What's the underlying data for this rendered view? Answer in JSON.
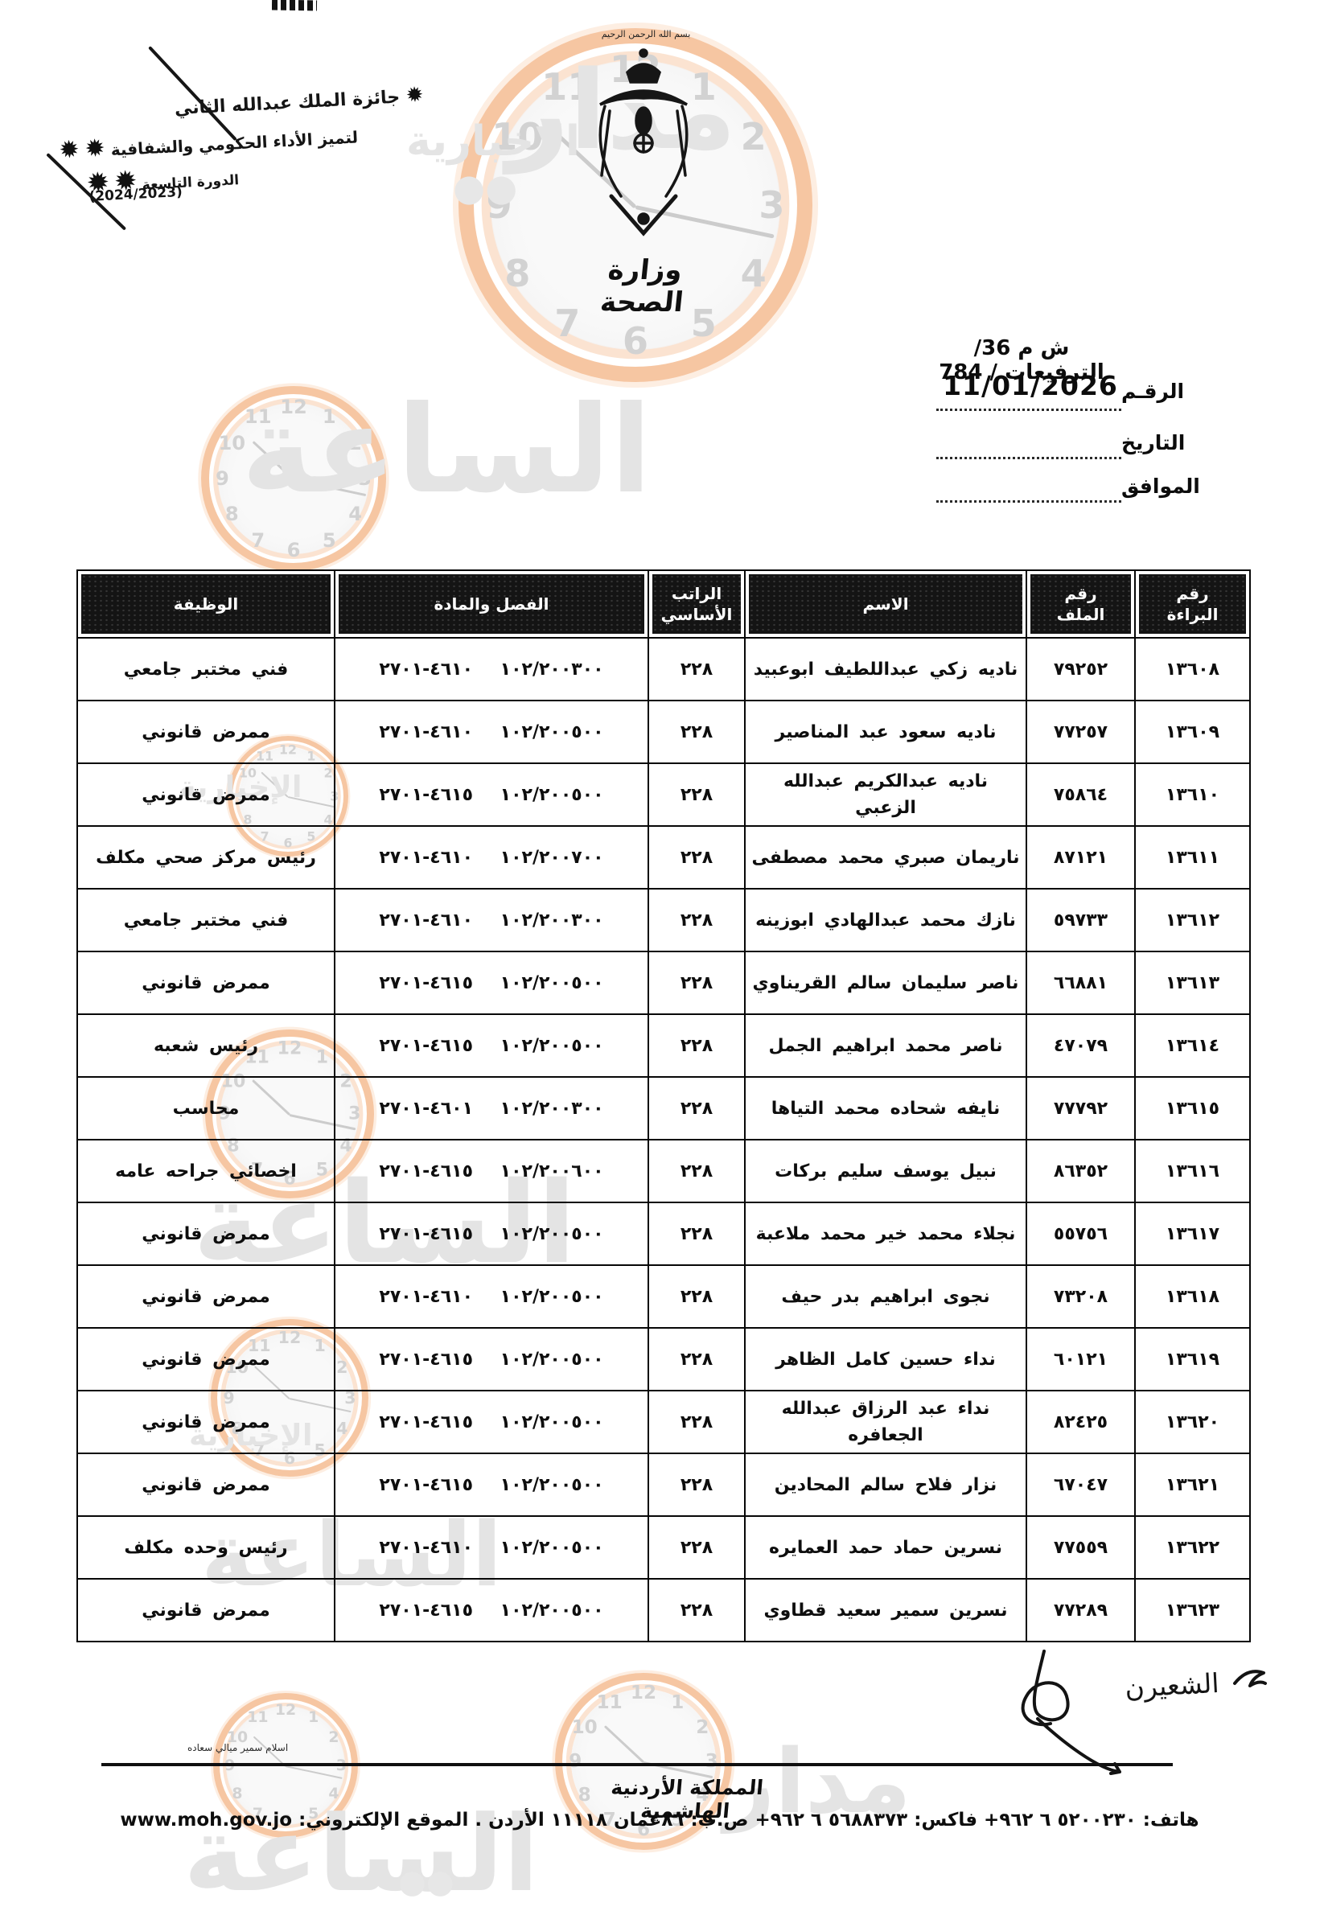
{
  "stamp": {
    "line1": "جائزة الملك عبدالله الثاني",
    "line2": "لتميز الأداء الحكومي والشفافية",
    "line3": "الدورة التاسعة",
    "line4": "(2024/2023)",
    "star_glyph": "✹"
  },
  "crest": {
    "bismillah": "بسم الله الرحمن الرحيم",
    "ministry_name": "وزارة الصحة"
  },
  "reference": {
    "ref_line": "ش م 36/الترفيعات / 784",
    "number_label": "الرقـم",
    "number_value": "11/01/2026",
    "date_label": "التاريخ",
    "corresponding_label": "الموافق"
  },
  "table": {
    "headers": {
      "serial": "رقم البراءة",
      "file": "رقم الملف",
      "name": "الاسم",
      "salary": "الراتب الأساسي",
      "chapter": "الفصل والمادة",
      "job": "الوظيفة"
    },
    "rows": [
      {
        "serial": "١٣٦٠٨",
        "file": "٧٩٢٥٢",
        "name": "ناديه زكي عبداللطيف ابوعبيد",
        "salary": "٢٢٨",
        "chapter": "١٠٢/٢٠٠٣٠٠ ٤٦١٠-٢٧٠١",
        "job": "فني مختبر جامعي"
      },
      {
        "serial": "١٣٦٠٩",
        "file": "٧٧٢٥٧",
        "name": "ناديه سعود عبد المناصير",
        "salary": "٢٢٨",
        "chapter": "١٠٢/٢٠٠٥٠٠ ٤٦١٠-٢٧٠١",
        "job": "ممرض قانوني"
      },
      {
        "serial": "١٣٦١٠",
        "file": "٧٥٨٦٤",
        "name": "ناديه عبدالكريم عبدالله الزعبي",
        "salary": "٢٢٨",
        "chapter": "١٠٢/٢٠٠٥٠٠ ٤٦١٥-٢٧٠١",
        "job": "ممرض قانوني"
      },
      {
        "serial": "١٣٦١١",
        "file": "٨٧١٢١",
        "name": "ناريمان صبري محمد مصطفى",
        "salary": "٢٢٨",
        "chapter": "١٠٢/٢٠٠٧٠٠ ٤٦١٠-٢٧٠١",
        "job": "رئيس مركز صحي مكلف"
      },
      {
        "serial": "١٣٦١٢",
        "file": "٥٩٧٣٣",
        "name": "نازك محمد عبدالهادي ابوزينه",
        "salary": "٢٢٨",
        "chapter": "١٠٢/٢٠٠٣٠٠ ٤٦١٠-٢٧٠١",
        "job": "فني مختبر جامعي"
      },
      {
        "serial": "١٣٦١٣",
        "file": "٦٦٨٨١",
        "name": "ناصر سليمان سالم القريناوي",
        "salary": "٢٢٨",
        "chapter": "١٠٢/٢٠٠٥٠٠ ٤٦١٥-٢٧٠١",
        "job": "ممرض قانوني"
      },
      {
        "serial": "١٣٦١٤",
        "file": "٤٧٠٧٩",
        "name": "ناصر محمد ابراهيم الجمل",
        "salary": "٢٢٨",
        "chapter": "١٠٢/٢٠٠٥٠٠ ٤٦١٥-٢٧٠١",
        "job": "رئيس شعبه"
      },
      {
        "serial": "١٣٦١٥",
        "file": "٧٧٧٩٢",
        "name": "نايفه شحاده محمد التياها",
        "salary": "٢٢٨",
        "chapter": "١٠٢/٢٠٠٣٠٠ ٤٦٠١-٢٧٠١",
        "job": "محاسب"
      },
      {
        "serial": "١٣٦١٦",
        "file": "٨٦٣٥٢",
        "name": "نبيل يوسف سليم بركات",
        "salary": "٢٢٨",
        "chapter": "١٠٢/٢٠٠٦٠٠ ٤٦١٥-٢٧٠١",
        "job": "اخصائي جراحه عامه"
      },
      {
        "serial": "١٣٦١٧",
        "file": "٥٥٧٥٦",
        "name": "نجلاء محمد خير محمد ملاعبة",
        "salary": "٢٢٨",
        "chapter": "١٠٢/٢٠٠٥٠٠ ٤٦١٥-٢٧٠١",
        "job": "ممرض قانوني"
      },
      {
        "serial": "١٣٦١٨",
        "file": "٧٣٢٠٨",
        "name": "نجوى ابراهيم بدر حيف",
        "salary": "٢٢٨",
        "chapter": "١٠٢/٢٠٠٥٠٠ ٤٦١٠-٢٧٠١",
        "job": "ممرض قانوني"
      },
      {
        "serial": "١٣٦١٩",
        "file": "٦٠١٢١",
        "name": "نداء حسين كامل الظاهر",
        "salary": "٢٢٨",
        "chapter": "١٠٢/٢٠٠٥٠٠ ٤٦١٥-٢٧٠١",
        "job": "ممرض قانوني"
      },
      {
        "serial": "١٣٦٢٠",
        "file": "٨٢٤٢٥",
        "name": "نداء عبد الرزاق عبدالله الجعافره",
        "salary": "٢٢٨",
        "chapter": "١٠٢/٢٠٠٥٠٠ ٤٦١٥-٢٧٠١",
        "job": "ممرض قانوني"
      },
      {
        "serial": "١٣٦٢١",
        "file": "٦٧٠٤٧",
        "name": "نزار فلاح سالم المحادين",
        "salary": "٢٢٨",
        "chapter": "١٠٢/٢٠٠٥٠٠ ٤٦١٥-٢٧٠١",
        "job": "ممرض قانوني"
      },
      {
        "serial": "١٣٦٢٢",
        "file": "٧٧٥٥٩",
        "name": "نسرين حماد حمد العمايره",
        "salary": "٢٢٨",
        "chapter": "١٠٢/٢٠٠٥٠٠ ٤٦١٠-٢٧٠١",
        "job": "رئيس وحده مكلف"
      },
      {
        "serial": "١٣٦٢٣",
        "file": "٧٧٢٨٩",
        "name": "نسرين سمير سعيد قطاوي",
        "salary": "٢٢٨",
        "chapter": "١٠٢/٢٠٠٥٠٠ ٤٦١٥-٢٧٠١",
        "job": "ممرض قانوني"
      }
    ]
  },
  "signature": {
    "annotation": "الشعيرن"
  },
  "footer": {
    "note": "اسلام سمير ميالي سعاده",
    "kingdom": "المملكة الأردنية الهاشمية",
    "contact": "هاتف: ٥٢٠٠٢٣٠ ٦ ٩٦٢+ فاكس: ٥٦٨٨٣٧٣ ٦ ٩٦٢+ ص.ب: ٨٦عمان ١١١١٨ الأردن . الموقع الإلكتروني: www.moh.gov.jo"
  },
  "watermark": {
    "brand_word1": "مدار",
    "brand_word2": "الساعة",
    "brand_word3": "الإخبارية",
    "dots": "●●",
    "accent": "#f6c6a2",
    "clock_numbers": [
      "12",
      "1",
      "2",
      "3",
      "4",
      "5",
      "6",
      "7",
      "8",
      "9",
      "10",
      "11"
    ]
  }
}
